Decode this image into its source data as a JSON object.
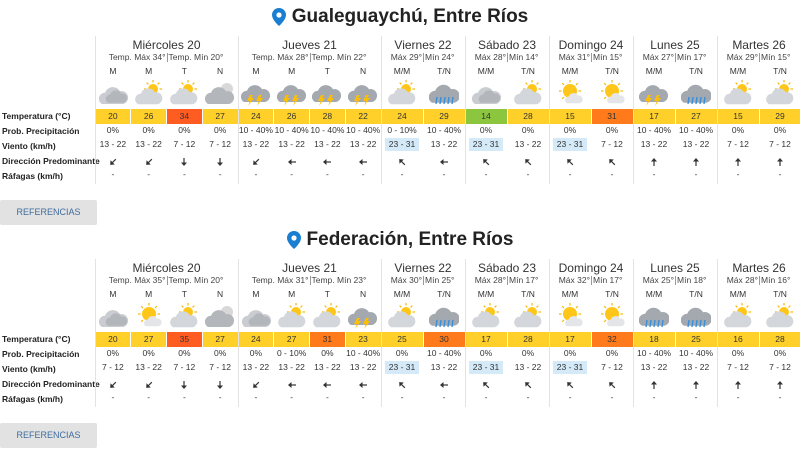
{
  "locations": [
    {
      "title": "Gualeguaychú, Entre Ríos",
      "row_labels": [
        "Temperatura (°C)",
        "Prob. Precipitación",
        "Viento (km/h)",
        "Dirección Predominante",
        "Ráfagas (km/h)"
      ],
      "days": [
        {
          "name": "Miércoles 20",
          "max": "Temp. Máx 34°",
          "min": "Temp. Mín 20°",
          "periods": [
            "M",
            "M",
            "T",
            "N"
          ],
          "temperature": [
            20,
            26,
            34,
            27
          ],
          "precipitation": [
            "0%",
            "0%",
            "0%",
            "0%"
          ],
          "wind": [
            "13 - 22",
            "13 - 22",
            "7 - 12",
            "7 - 12"
          ],
          "gusts": [
            "-",
            "-",
            "-",
            "-"
          ]
        },
        {
          "name": "Jueves 21",
          "max": "Temp. Máx 28°",
          "min": "Temp. Mín 22°",
          "periods": [
            "M",
            "M",
            "T",
            "N"
          ],
          "temperature": [
            24,
            26,
            28,
            22
          ],
          "precipitation": [
            "10 - 40%",
            "10 - 40%",
            "10 - 40%",
            "10 - 40%"
          ],
          "wind": [
            "13 - 22",
            "13 - 22",
            "13 - 22",
            "13 - 22"
          ],
          "gusts": [
            "-",
            "-",
            "-",
            "-"
          ]
        },
        {
          "name": "Viernes 22",
          "max": "Máx 29°",
          "min": "Mín 24°",
          "periods": [
            "M/M",
            "T/N"
          ],
          "temperature": [
            24,
            29
          ],
          "precipitation": [
            "0 - 10%",
            "10 - 40%"
          ],
          "wind": [
            "23 - 31",
            "13 - 22"
          ],
          "gusts": [
            "-",
            "-"
          ]
        },
        {
          "name": "Sábado 23",
          "max": "Máx 28°",
          "min": "Mín 14°",
          "periods": [
            "M/M",
            "T/N"
          ],
          "temperature": [
            14,
            28
          ],
          "precipitation": [
            "0%",
            "0%"
          ],
          "wind": [
            "23 - 31",
            "13 - 22"
          ],
          "gusts": [
            "-",
            "-"
          ]
        },
        {
          "name": "Domingo 24",
          "max": "Máx 31°",
          "min": "Mín 15°",
          "periods": [
            "M/M",
            "T/N"
          ],
          "temperature": [
            15,
            31
          ],
          "precipitation": [
            "0%",
            "0%"
          ],
          "wind": [
            "23 - 31",
            "7 - 12"
          ],
          "gusts": [
            "-",
            "-"
          ]
        },
        {
          "name": "Lunes 25",
          "max": "Máx 27°",
          "min": "Mín 17°",
          "periods": [
            "M/M",
            "T/N"
          ],
          "temperature": [
            17,
            27
          ],
          "precipitation": [
            "10 - 40%",
            "10 - 40%"
          ],
          "wind": [
            "13 - 22",
            "13 - 22"
          ],
          "gusts": [
            "-",
            "-"
          ]
        },
        {
          "name": "Martes 26",
          "max": "Máx 29°",
          "min": "Mín 15°",
          "periods": [
            "M/M",
            "T/N"
          ],
          "temperature": [
            15,
            29
          ],
          "precipitation": [
            "0%",
            "0%"
          ],
          "wind": [
            "7 - 12",
            "7 - 12"
          ],
          "gusts": [
            "-",
            "-"
          ]
        }
      ],
      "button": "REFERENCIAS"
    },
    {
      "title": "Federación, Entre Ríos",
      "row_labels": [
        "Temperatura (°C)",
        "Prob. Precipitación",
        "Viento (km/h)",
        "Dirección Predominante",
        "Ráfagas (km/h)"
      ],
      "days": [
        {
          "name": "Miércoles 20",
          "max": "Temp. Máx 35°",
          "min": "Temp. Mín 20°",
          "periods": [
            "M",
            "M",
            "T",
            "N"
          ],
          "temperature": [
            20,
            27,
            35,
            27
          ],
          "precipitation": [
            "0%",
            "0%",
            "0%",
            "0%"
          ],
          "wind": [
            "7 - 12",
            "13 - 22",
            "7 - 12",
            "7 - 12"
          ],
          "gusts": [
            "-",
            "-",
            "-",
            "-"
          ]
        },
        {
          "name": "Jueves 21",
          "max": "Temp. Máx 31°",
          "min": "Temp. Mín 23°",
          "periods": [
            "M",
            "M",
            "T",
            "N"
          ],
          "temperature": [
            24,
            27,
            31,
            23
          ],
          "precipitation": [
            "0%",
            "0 - 10%",
            "0%",
            "10 - 40%"
          ],
          "wind": [
            "13 - 22",
            "13 - 22",
            "13 - 22",
            "13 - 22"
          ],
          "gusts": [
            "-",
            "-",
            "-",
            "-"
          ]
        },
        {
          "name": "Viernes 22",
          "max": "Máx 30°",
          "min": "Mín 25°",
          "periods": [
            "M/M",
            "T/N"
          ],
          "temperature": [
            25,
            30
          ],
          "precipitation": [
            "0%",
            "10 - 40%"
          ],
          "wind": [
            "23 - 31",
            "13 - 22"
          ],
          "gusts": [
            "-",
            "-"
          ]
        },
        {
          "name": "Sábado 23",
          "max": "Máx 28°",
          "min": "Mín 17°",
          "periods": [
            "M/M",
            "T/N"
          ],
          "temperature": [
            17,
            28
          ],
          "precipitation": [
            "0%",
            "0%"
          ],
          "wind": [
            "23 - 31",
            "13 - 22"
          ],
          "gusts": [
            "-",
            "-"
          ]
        },
        {
          "name": "Domingo 24",
          "max": "Máx 32°",
          "min": "Mín 17°",
          "periods": [
            "M/M",
            "T/N"
          ],
          "temperature": [
            17,
            32
          ],
          "precipitation": [
            "0%",
            "0%"
          ],
          "wind": [
            "23 - 31",
            "7 - 12"
          ],
          "gusts": [
            "-",
            "-"
          ]
        },
        {
          "name": "Lunes 25",
          "max": "Máx 25°",
          "min": "Mín 18°",
          "periods": [
            "M/M",
            "T/N"
          ],
          "temperature": [
            18,
            25
          ],
          "precipitation": [
            "10 - 40%",
            "10 - 40%"
          ],
          "wind": [
            "13 - 22",
            "13 - 22"
          ],
          "gusts": [
            "-",
            "-"
          ]
        },
        {
          "name": "Martes 26",
          "max": "Máx 28°",
          "min": "Mín 16°",
          "periods": [
            "M/M",
            "T/N"
          ],
          "temperature": [
            16,
            28
          ],
          "precipitation": [
            "0%",
            "0%"
          ],
          "wind": [
            "7 - 12",
            "7 - 12"
          ],
          "gusts": [
            "-",
            "-"
          ]
        }
      ],
      "button": "REFERENCIAS"
    }
  ]
}
